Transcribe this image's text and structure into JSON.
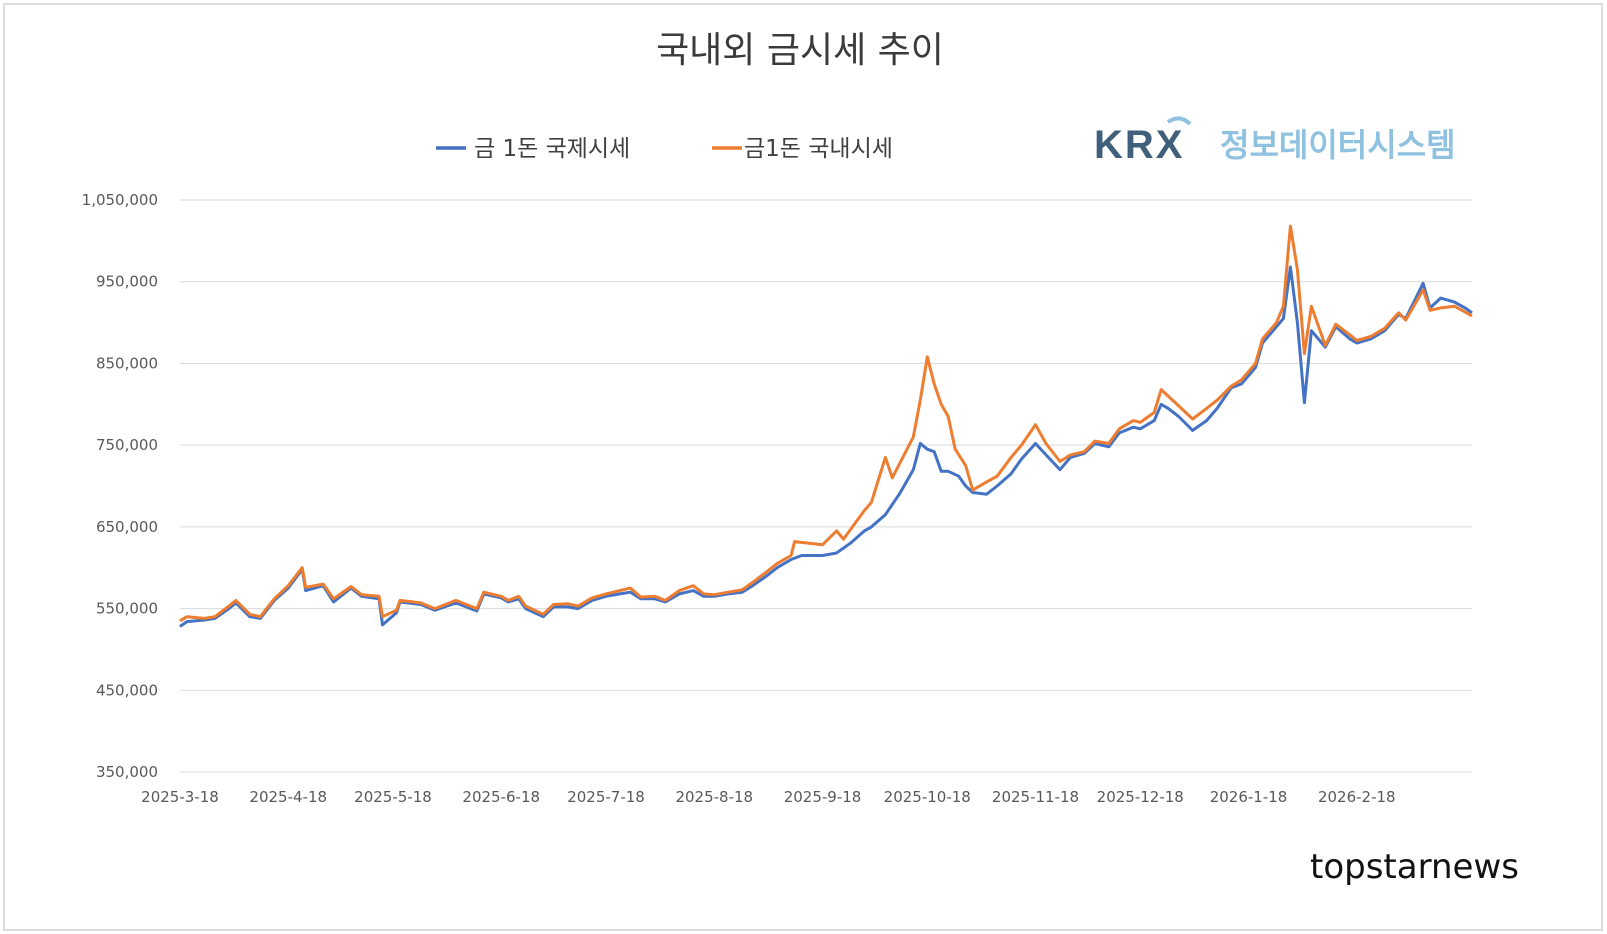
{
  "chart_data": {
    "type": "line",
    "title": "국내외 금시세 추이",
    "ylim": [
      350000,
      1050000
    ],
    "y_ticks": [
      350000,
      450000,
      550000,
      650000,
      750000,
      850000,
      950000,
      1050000
    ],
    "y_tick_labels": [
      "350,000",
      "450,000",
      "550,000",
      "650,000",
      "750,000",
      "850,000",
      "950,000",
      "1,050,000"
    ],
    "x_tick_labels": [
      "2025-3-18",
      "2025-4-18",
      "2025-5-18",
      "2025-6-18",
      "2025-7-18",
      "2025-8-18",
      "2025-9-18",
      "2025-10-18",
      "2025-11-18",
      "2025-12-18",
      "2026-1-18",
      "2026-2-18"
    ],
    "grid": true,
    "legend_position": "top-center",
    "series": [
      {
        "name": "금 1돈 국제시세",
        "color": "#4472c4",
        "points": [
          [
            "2025-03-18",
            528000
          ],
          [
            "2025-03-20",
            534000
          ],
          [
            "2025-03-25",
            536000
          ],
          [
            "2025-03-28",
            538000
          ],
          [
            "2025-04-01",
            550000
          ],
          [
            "2025-04-03",
            557000
          ],
          [
            "2025-04-07",
            540000
          ],
          [
            "2025-04-10",
            538000
          ],
          [
            "2025-04-14",
            560000
          ],
          [
            "2025-04-18",
            575000
          ],
          [
            "2025-04-22",
            598000
          ],
          [
            "2025-04-23",
            572000
          ],
          [
            "2025-04-28",
            578000
          ],
          [
            "2025-05-01",
            558000
          ],
          [
            "2025-05-06",
            575000
          ],
          [
            "2025-05-09",
            565000
          ],
          [
            "2025-05-14",
            562000
          ],
          [
            "2025-05-15",
            530000
          ],
          [
            "2025-05-19",
            545000
          ],
          [
            "2025-05-20",
            558000
          ],
          [
            "2025-05-26",
            555000
          ],
          [
            "2025-05-30",
            548000
          ],
          [
            "2025-06-05",
            557000
          ],
          [
            "2025-06-11",
            547000
          ],
          [
            "2025-06-13",
            568000
          ],
          [
            "2025-06-16",
            565000
          ],
          [
            "2025-06-18",
            563000
          ],
          [
            "2025-06-20",
            558000
          ],
          [
            "2025-06-23",
            562000
          ],
          [
            "2025-06-25",
            550000
          ],
          [
            "2025-06-30",
            540000
          ],
          [
            "2025-07-03",
            552000
          ],
          [
            "2025-07-07",
            552000
          ],
          [
            "2025-07-10",
            550000
          ],
          [
            "2025-07-14",
            560000
          ],
          [
            "2025-07-18",
            565000
          ],
          [
            "2025-07-22",
            568000
          ],
          [
            "2025-07-25",
            570000
          ],
          [
            "2025-07-28",
            562000
          ],
          [
            "2025-08-01",
            562000
          ],
          [
            "2025-08-04",
            558000
          ],
          [
            "2025-08-08",
            568000
          ],
          [
            "2025-08-12",
            572000
          ],
          [
            "2025-08-15",
            565000
          ],
          [
            "2025-08-18",
            565000
          ],
          [
            "2025-08-22",
            568000
          ],
          [
            "2025-08-26",
            570000
          ],
          [
            "2025-08-29",
            578000
          ],
          [
            "2025-09-02",
            590000
          ],
          [
            "2025-09-05",
            600000
          ],
          [
            "2025-09-09",
            610000
          ],
          [
            "2025-09-12",
            615000
          ],
          [
            "2025-09-18",
            615000
          ],
          [
            "2025-09-22",
            618000
          ],
          [
            "2025-09-26",
            630000
          ],
          [
            "2025-09-30",
            645000
          ],
          [
            "2025-10-02",
            650000
          ],
          [
            "2025-10-06",
            665000
          ],
          [
            "2025-10-10",
            690000
          ],
          [
            "2025-10-14",
            720000
          ],
          [
            "2025-10-16",
            752000
          ],
          [
            "2025-10-18",
            745000
          ],
          [
            "2025-10-20",
            742000
          ],
          [
            "2025-10-22",
            718000
          ],
          [
            "2025-10-24",
            718000
          ],
          [
            "2025-10-27",
            712000
          ],
          [
            "2025-10-29",
            700000
          ],
          [
            "2025-10-31",
            692000
          ],
          [
            "2025-11-04",
            690000
          ],
          [
            "2025-11-07",
            700000
          ],
          [
            "2025-11-11",
            715000
          ],
          [
            "2025-11-14",
            733000
          ],
          [
            "2025-11-18",
            752000
          ],
          [
            "2025-11-21",
            738000
          ],
          [
            "2025-11-25",
            720000
          ],
          [
            "2025-11-28",
            735000
          ],
          [
            "2025-12-02",
            740000
          ],
          [
            "2025-12-05",
            752000
          ],
          [
            "2025-12-09",
            748000
          ],
          [
            "2025-12-12",
            765000
          ],
          [
            "2025-12-16",
            772000
          ],
          [
            "2025-12-18",
            770000
          ],
          [
            "2025-12-22",
            780000
          ],
          [
            "2025-12-24",
            800000
          ],
          [
            "2025-12-26",
            795000
          ],
          [
            "2025-12-29",
            785000
          ],
          [
            "2026-01-02",
            768000
          ],
          [
            "2026-01-06",
            780000
          ],
          [
            "2026-01-09",
            795000
          ],
          [
            "2026-01-13",
            820000
          ],
          [
            "2026-01-16",
            825000
          ],
          [
            "2026-01-20",
            845000
          ],
          [
            "2026-01-22",
            875000
          ],
          [
            "2026-01-26",
            895000
          ],
          [
            "2026-01-28",
            905000
          ],
          [
            "2026-01-30",
            968000
          ],
          [
            "2026-02-01",
            900000
          ],
          [
            "2026-02-03",
            802000
          ],
          [
            "2026-02-05",
            890000
          ],
          [
            "2026-02-09",
            870000
          ],
          [
            "2026-02-12",
            895000
          ],
          [
            "2026-02-16",
            880000
          ],
          [
            "2026-02-18",
            875000
          ],
          [
            "2026-02-22",
            880000
          ],
          [
            "2026-02-26",
            890000
          ],
          [
            "2026-03-02",
            910000
          ],
          [
            "2026-03-04",
            905000
          ],
          [
            "2026-03-09",
            948000
          ],
          [
            "2026-03-11",
            918000
          ],
          [
            "2026-03-14",
            930000
          ],
          [
            "2026-03-18",
            925000
          ],
          [
            "2026-03-21",
            918000
          ],
          [
            "2026-03-23",
            912000
          ]
        ]
      },
      {
        "name": "금1돈 국내시세",
        "color": "#ed7d31",
        "points": [
          [
            "2025-03-18",
            535000
          ],
          [
            "2025-03-20",
            540000
          ],
          [
            "2025-03-25",
            538000
          ],
          [
            "2025-03-28",
            540000
          ],
          [
            "2025-04-01",
            553000
          ],
          [
            "2025-04-03",
            560000
          ],
          [
            "2025-04-07",
            543000
          ],
          [
            "2025-04-10",
            540000
          ],
          [
            "2025-04-14",
            562000
          ],
          [
            "2025-04-18",
            578000
          ],
          [
            "2025-04-22",
            600000
          ],
          [
            "2025-04-23",
            576000
          ],
          [
            "2025-04-28",
            580000
          ],
          [
            "2025-05-01",
            562000
          ],
          [
            "2025-05-06",
            577000
          ],
          [
            "2025-05-09",
            567000
          ],
          [
            "2025-05-14",
            565000
          ],
          [
            "2025-05-15",
            540000
          ],
          [
            "2025-05-19",
            548000
          ],
          [
            "2025-05-20",
            560000
          ],
          [
            "2025-05-26",
            557000
          ],
          [
            "2025-05-30",
            550000
          ],
          [
            "2025-06-05",
            560000
          ],
          [
            "2025-06-11",
            550000
          ],
          [
            "2025-06-13",
            570000
          ],
          [
            "2025-06-16",
            567000
          ],
          [
            "2025-06-18",
            565000
          ],
          [
            "2025-06-20",
            560000
          ],
          [
            "2025-06-23",
            565000
          ],
          [
            "2025-06-25",
            553000
          ],
          [
            "2025-06-30",
            543000
          ],
          [
            "2025-07-03",
            555000
          ],
          [
            "2025-07-07",
            556000
          ],
          [
            "2025-07-10",
            553000
          ],
          [
            "2025-07-14",
            563000
          ],
          [
            "2025-07-18",
            568000
          ],
          [
            "2025-07-22",
            572000
          ],
          [
            "2025-07-25",
            575000
          ],
          [
            "2025-07-28",
            564000
          ],
          [
            "2025-08-01",
            565000
          ],
          [
            "2025-08-04",
            560000
          ],
          [
            "2025-08-08",
            572000
          ],
          [
            "2025-08-12",
            578000
          ],
          [
            "2025-08-15",
            568000
          ],
          [
            "2025-08-18",
            567000
          ],
          [
            "2025-08-22",
            570000
          ],
          [
            "2025-08-26",
            573000
          ],
          [
            "2025-08-29",
            582000
          ],
          [
            "2025-09-02",
            595000
          ],
          [
            "2025-09-05",
            605000
          ],
          [
            "2025-09-09",
            615000
          ],
          [
            "2025-09-10",
            632000
          ],
          [
            "2025-09-18",
            628000
          ],
          [
            "2025-09-22",
            645000
          ],
          [
            "2025-09-24",
            635000
          ],
          [
            "2025-09-30",
            670000
          ],
          [
            "2025-10-02",
            680000
          ],
          [
            "2025-10-06",
            735000
          ],
          [
            "2025-10-08",
            710000
          ],
          [
            "2025-10-14",
            760000
          ],
          [
            "2025-10-16",
            805000
          ],
          [
            "2025-10-18",
            858000
          ],
          [
            "2025-10-20",
            825000
          ],
          [
            "2025-10-22",
            800000
          ],
          [
            "2025-10-24",
            785000
          ],
          [
            "2025-10-26",
            745000
          ],
          [
            "2025-10-29",
            725000
          ],
          [
            "2025-10-31",
            695000
          ],
          [
            "2025-11-04",
            705000
          ],
          [
            "2025-11-07",
            712000
          ],
          [
            "2025-11-11",
            735000
          ],
          [
            "2025-11-14",
            750000
          ],
          [
            "2025-11-18",
            775000
          ],
          [
            "2025-11-21",
            752000
          ],
          [
            "2025-11-25",
            730000
          ],
          [
            "2025-11-28",
            738000
          ],
          [
            "2025-12-02",
            742000
          ],
          [
            "2025-12-05",
            755000
          ],
          [
            "2025-12-09",
            752000
          ],
          [
            "2025-12-12",
            770000
          ],
          [
            "2025-12-16",
            780000
          ],
          [
            "2025-12-18",
            778000
          ],
          [
            "2025-12-22",
            790000
          ],
          [
            "2025-12-24",
            818000
          ],
          [
            "2025-12-26",
            810000
          ],
          [
            "2025-12-29",
            798000
          ],
          [
            "2026-01-02",
            782000
          ],
          [
            "2026-01-06",
            795000
          ],
          [
            "2026-01-09",
            805000
          ],
          [
            "2026-01-13",
            822000
          ],
          [
            "2026-01-16",
            830000
          ],
          [
            "2026-01-20",
            850000
          ],
          [
            "2026-01-22",
            880000
          ],
          [
            "2026-01-26",
            900000
          ],
          [
            "2026-01-28",
            920000
          ],
          [
            "2026-01-30",
            1018000
          ],
          [
            "2026-02-01",
            965000
          ],
          [
            "2026-02-03",
            862000
          ],
          [
            "2026-02-05",
            920000
          ],
          [
            "2026-02-09",
            872000
          ],
          [
            "2026-02-12",
            898000
          ],
          [
            "2026-02-16",
            885000
          ],
          [
            "2026-02-18",
            878000
          ],
          [
            "2026-02-22",
            883000
          ],
          [
            "2026-02-26",
            893000
          ],
          [
            "2026-03-02",
            912000
          ],
          [
            "2026-03-04",
            903000
          ],
          [
            "2026-03-09",
            940000
          ],
          [
            "2026-03-11",
            915000
          ],
          [
            "2026-03-14",
            918000
          ],
          [
            "2026-03-18",
            920000
          ],
          [
            "2026-03-21",
            913000
          ],
          [
            "2026-03-23",
            908000
          ]
        ]
      }
    ]
  },
  "logo": {
    "name": "KRX",
    "subtitle": "정보데이터시스템",
    "colors": {
      "primary": "#3f5f7a",
      "secondary": "#8fc1e0"
    }
  },
  "credit": "topstarnews"
}
